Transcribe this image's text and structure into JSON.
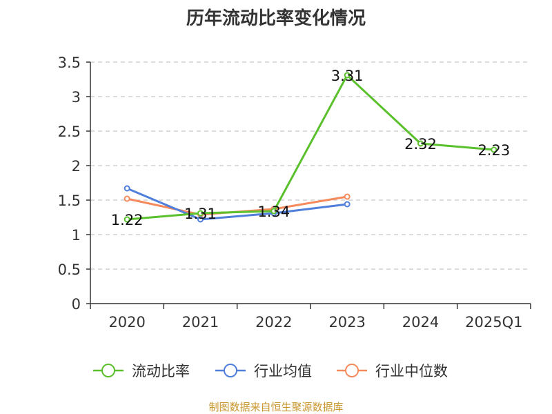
{
  "chart_data": {
    "type": "line",
    "title": "历年流动比率变化情况",
    "categories": [
      "2020",
      "2021",
      "2022",
      "2023",
      "2024",
      "2025Q1"
    ],
    "ylim": [
      0,
      3.5
    ],
    "yticks": [
      0,
      0.5,
      1,
      1.5,
      2,
      2.5,
      3,
      3.5
    ],
    "ytick_labels": [
      "0",
      "0.5",
      "1",
      "1.5",
      "2",
      "2.5",
      "3",
      "3.5"
    ],
    "grid": true,
    "legend_position": "bottom",
    "series": [
      {
        "name": "流动比率",
        "color": "#5ac02c",
        "show_labels": true,
        "values": [
          1.22,
          1.31,
          1.34,
          3.31,
          2.32,
          2.23
        ],
        "labels": [
          "1.22",
          "1.31",
          "1.34",
          "3.31",
          "2.32",
          "2.23"
        ]
      },
      {
        "name": "行业均值",
        "color": "#4f7fdb",
        "show_labels": false,
        "values": [
          1.67,
          1.22,
          1.31,
          1.44,
          null,
          null
        ]
      },
      {
        "name": "行业中位数",
        "color": "#f58a5c",
        "show_labels": false,
        "values": [
          1.52,
          1.29,
          1.37,
          1.55,
          null,
          null
        ]
      }
    ]
  },
  "source": "制图数据来自恒生聚源数据库"
}
